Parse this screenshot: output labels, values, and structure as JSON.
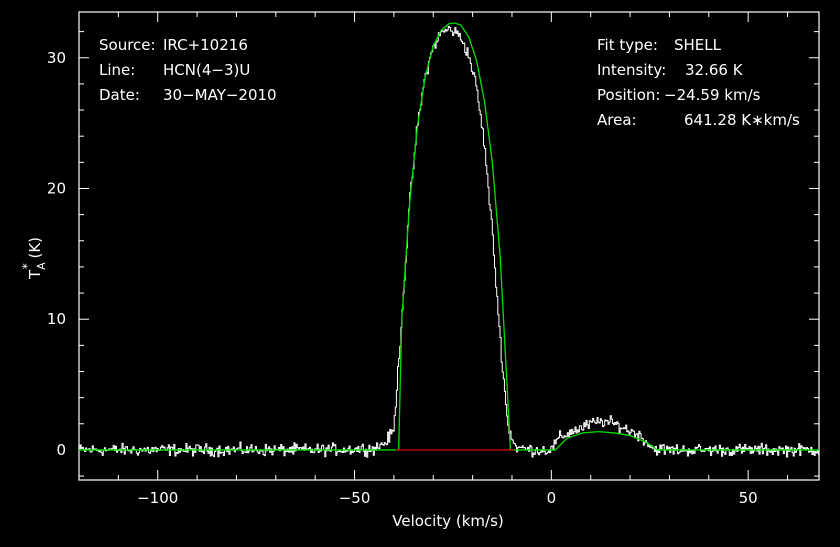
{
  "chart_data": {
    "type": "line",
    "xlabel": "Velocity (km/s)",
    "ylabel": {
      "base": "T",
      "sub": "A",
      "sup": "*",
      "unit": " (K)"
    },
    "xlim": [
      -120,
      68
    ],
    "ylim": [
      -2.3,
      33.5
    ],
    "xticks": [
      -100,
      -50,
      0,
      50
    ],
    "xtick_labels": [
      "−100",
      "−50",
      "0",
      "50"
    ],
    "yticks": [
      0,
      10,
      20,
      30
    ],
    "ytick_labels": [
      "0",
      "10",
      "20",
      "30"
    ],
    "grid": false,
    "info_left": [
      {
        "label": "Source:",
        "value": "IRC+10216"
      },
      {
        "label": "Line:",
        "value": "HCN(4−3)U"
      },
      {
        "label": "Date:",
        "value": "30−MAY−2010"
      }
    ],
    "info_right": [
      {
        "label": "Fit type:",
        "value": "SHELL"
      },
      {
        "label": "Intensity:",
        "value": "32.66 K"
      },
      {
        "label": "Position:",
        "value": "−24.59 km/s"
      },
      {
        "label": "Area:",
        "value": "641.28 K∗km/s"
      }
    ],
    "fit": {
      "center": -24.59,
      "peak": 32.66,
      "half_width": 14.2
    },
    "baseline_segment": {
      "x": [
        -39.5,
        -9.5
      ],
      "y": 0
    },
    "series": [
      {
        "role": "observed spectrum",
        "color": "#ffffff",
        "x": [
          -120,
          -90,
          -60,
          -45,
          -42,
          -40,
          -38,
          -36,
          -34,
          -32,
          -30,
          -28,
          -26,
          -24.6,
          -23,
          -21,
          -19,
          -17,
          -15,
          -13,
          -11,
          -9,
          -5,
          0,
          2,
          5,
          8,
          10,
          13,
          16,
          19,
          22,
          24,
          26,
          30,
          45,
          68
        ],
        "y": [
          0,
          0,
          0,
          0.1,
          0.6,
          1.5,
          10.0,
          18.8,
          24.8,
          28.6,
          30.8,
          31.9,
          32.2,
          32.0,
          31.6,
          30.2,
          27.8,
          23.4,
          16.8,
          8.6,
          1.8,
          0.2,
          0,
          0,
          0.9,
          1.4,
          1.7,
          2.0,
          2.2,
          2.0,
          1.6,
          1.2,
          0.7,
          0.1,
          0,
          0,
          0
        ]
      },
      {
        "role": "shell fit",
        "color": "#00dd00",
        "x": [
          -120,
          -40,
          -38.79,
          -38,
          -36,
          -34,
          -32,
          -30,
          -28,
          -26,
          -24.59,
          -23,
          -21,
          -19,
          -17,
          -15,
          -13,
          -11,
          -10.39,
          1,
          4,
          8,
          12,
          16,
          20,
          24,
          27,
          68
        ],
        "y": [
          0,
          0,
          0,
          10.0,
          18.9,
          24.8,
          28.6,
          30.9,
          32.1,
          32.6,
          32.66,
          32.5,
          31.6,
          29.8,
          26.7,
          22.0,
          14.8,
          3.5,
          0,
          0,
          0.9,
          1.3,
          1.4,
          1.3,
          1.1,
          0.6,
          0,
          0
        ]
      }
    ]
  },
  "colors": {
    "background": "#000000",
    "axes": "#ffffff",
    "fit": "#00dd00",
    "baseline": "#cc0000",
    "spectrum": "#ffffff"
  }
}
